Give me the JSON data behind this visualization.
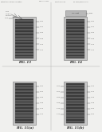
{
  "background_color": "#f0f0ee",
  "fig13_label": "FIG. 13",
  "fig14_label": "FIG. 14",
  "fig15a_label": "FIG. 15(a)",
  "fig15b_label": "FIG. 15(b)",
  "header_text": "Patent Application Publication",
  "header_date": "Sep. 22, 2011",
  "header_sheet": "Sheet 54 of 58",
  "header_num": "US 2011/0229897 A1",
  "chip_dark_color": "#3a3a3a",
  "chip_stripe_color": "#5a5a5a",
  "outer_fill_color": "#c8c8c8",
  "outer_edge_color": "#888888",
  "top_box_color": "#b8b8b8",
  "top_box_edge": "#777777",
  "ref_color": "#555555",
  "label_color": "#222222",
  "white": "#ffffff",
  "line_lw": 0.3,
  "fig_label_fontsize": 2.8
}
